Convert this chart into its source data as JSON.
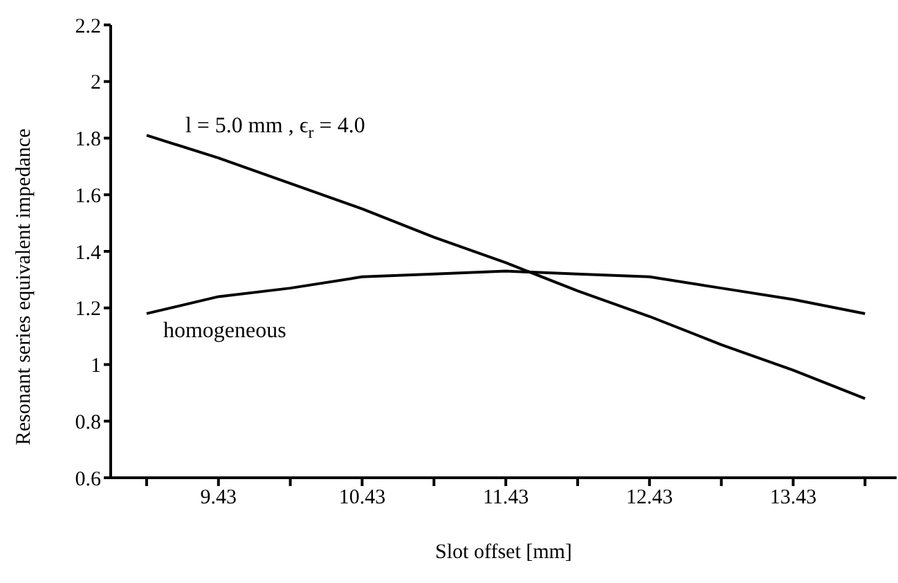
{
  "chart_data": {
    "type": "line",
    "xlabel": "Slot offset [mm]",
    "ylabel": "Resonant series equivalent impedance",
    "x": [
      8.93,
      9.43,
      9.93,
      10.43,
      10.93,
      11.43,
      11.93,
      12.43,
      12.93,
      13.43,
      13.93
    ],
    "series": [
      {
        "name": "l = 5.0 mm , ϵ$_{r}$ = 4.0",
        "color": "#000000",
        "values": [
          1.81,
          1.73,
          1.64,
          1.55,
          1.45,
          1.36,
          1.26,
          1.17,
          1.07,
          0.98,
          0.88
        ]
      },
      {
        "name": "homogeneous",
        "color": "#000000",
        "values": [
          1.18,
          1.24,
          1.27,
          1.31,
          1.32,
          1.33,
          1.32,
          1.31,
          1.27,
          1.23,
          1.18
        ]
      }
    ],
    "xlim": [
      8.68,
      14.15
    ],
    "xticks": [
      {
        "value": 8.93,
        "label": null
      },
      9.43,
      {
        "value": 9.93,
        "label": null
      },
      10.43,
      {
        "value": 10.93,
        "label": null
      },
      11.43,
      {
        "value": 11.93,
        "label": null
      },
      12.43,
      {
        "value": 12.93,
        "label": null
      },
      13.43,
      {
        "value": 13.93,
        "label": null
      }
    ],
    "ylim": [
      0.6,
      2.2
    ],
    "yticks": [
      0.6,
      0.8,
      1,
      1.2,
      1.4,
      1.6,
      1.8,
      2,
      2.2
    ],
    "grid": false,
    "legend": false,
    "marker": "none",
    "line_style": "solid"
  }
}
